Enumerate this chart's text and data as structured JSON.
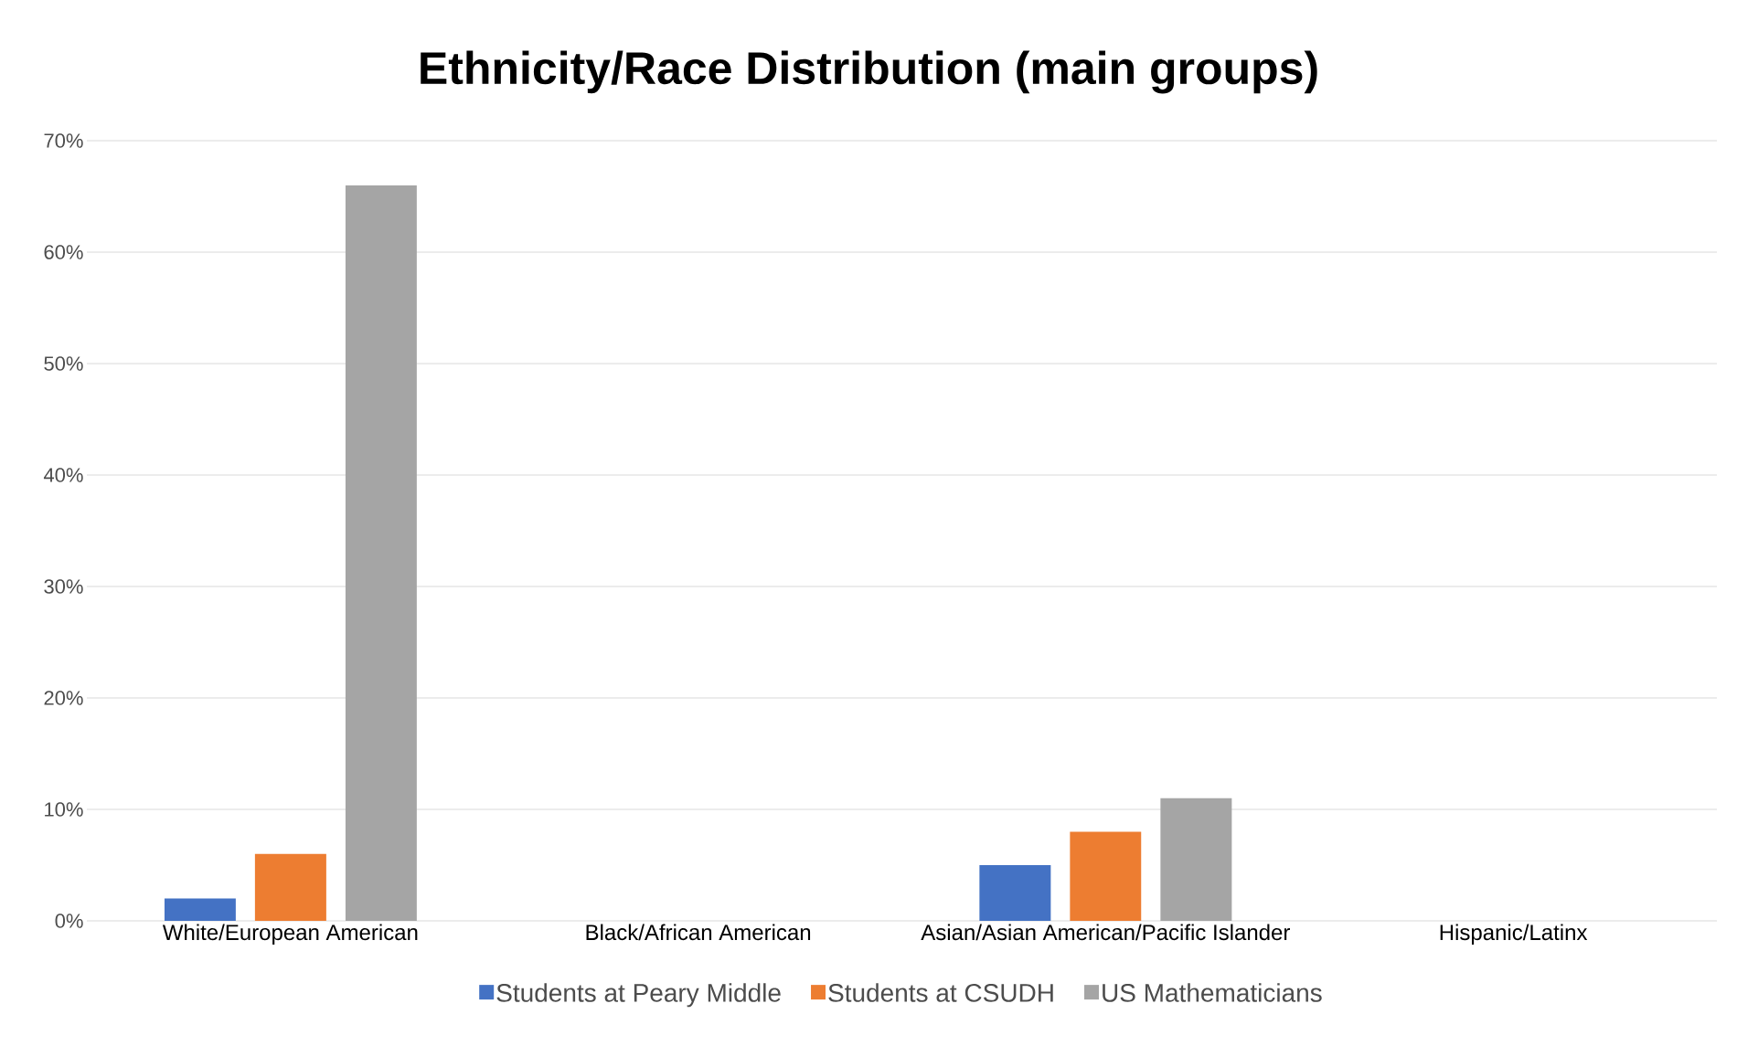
{
  "chart_data": {
    "type": "bar",
    "title": "Ethnicity/Race Distribution (main groups)",
    "categories": [
      "White/European American",
      "Black/African American",
      "Asian/Asian American/Pacific Islander",
      "Hispanic/Latinx"
    ],
    "series": [
      {
        "name": "Students at Peary Middle",
        "color": "#4472c4",
        "values": [
          2,
          null,
          5,
          null
        ]
      },
      {
        "name": "Students at CSUDH",
        "color": "#ed7d31",
        "values": [
          6,
          null,
          8,
          null
        ]
      },
      {
        "name": "US Mathematicians",
        "color": "#a5a5a5",
        "values": [
          66,
          null,
          11,
          null
        ]
      }
    ],
    "ylim": [
      0,
      70
    ],
    "yticks": [
      {
        "value": 0,
        "label": "0%"
      },
      {
        "value": 10,
        "label": "10%"
      },
      {
        "value": 20,
        "label": "20%"
      },
      {
        "value": 30,
        "label": "30%"
      },
      {
        "value": 40,
        "label": "40%"
      },
      {
        "value": 50,
        "label": "50%"
      },
      {
        "value": 60,
        "label": "60%"
      },
      {
        "value": 70,
        "label": "70%"
      }
    ],
    "grid": "y",
    "legend": "bottom"
  }
}
